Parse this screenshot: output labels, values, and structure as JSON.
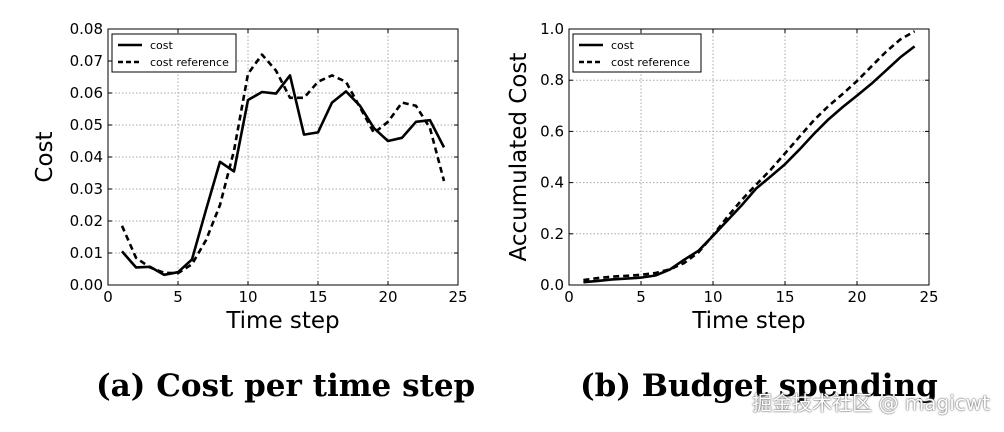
{
  "chart_data": [
    {
      "type": "line",
      "title": "",
      "xlabel": "Time step",
      "ylabel": "Cost",
      "xlim": [
        0,
        25
      ],
      "ylim": [
        0,
        0.08
      ],
      "xticks": [
        0,
        5,
        10,
        15,
        20,
        25
      ],
      "xtick_labels": [
        "0",
        "5",
        "10",
        "15",
        "20",
        "25"
      ],
      "yticks": [
        0,
        0.01,
        0.02,
        0.03,
        0.04,
        0.05,
        0.06,
        0.07,
        0.08
      ],
      "ytick_labels": [
        "0.00",
        "0.01",
        "0.02",
        "0.03",
        "0.04",
        "0.05",
        "0.06",
        "0.07",
        "0.08"
      ],
      "grid": true,
      "legend_position": "top-left",
      "x": [
        1,
        2,
        3,
        4,
        5,
        6,
        7,
        8,
        9,
        10,
        11,
        12,
        13,
        14,
        15,
        16,
        17,
        18,
        19,
        20,
        21,
        22,
        23,
        24
      ],
      "series": [
        {
          "name": "cost",
          "style": "solid",
          "values": [
            0.0105,
            0.0055,
            0.0057,
            0.0032,
            0.004,
            0.008,
            0.0235,
            0.0385,
            0.0355,
            0.0578,
            0.0603,
            0.0598,
            0.0655,
            0.047,
            0.0477,
            0.057,
            0.0605,
            0.056,
            0.049,
            0.045,
            0.046,
            0.051,
            0.0515,
            0.043
          ]
        },
        {
          "name": "cost reference",
          "style": "dashed",
          "values": [
            0.0185,
            0.0085,
            0.0055,
            0.0038,
            0.0037,
            0.0065,
            0.014,
            0.025,
            0.042,
            0.066,
            0.072,
            0.067,
            0.0585,
            0.0585,
            0.0635,
            0.0655,
            0.0635,
            0.0555,
            0.0475,
            0.051,
            0.057,
            0.056,
            0.049,
            0.0325
          ]
        }
      ]
    },
    {
      "type": "line",
      "title": "",
      "xlabel": "Time step",
      "ylabel": "Accumulated Cost",
      "xlim": [
        0,
        25
      ],
      "ylim": [
        0,
        1.0
      ],
      "xticks": [
        0,
        5,
        10,
        15,
        20,
        25
      ],
      "xtick_labels": [
        "0",
        "5",
        "10",
        "15",
        "20",
        "25"
      ],
      "yticks": [
        0,
        0.2,
        0.4,
        0.6,
        0.8,
        1.0
      ],
      "ytick_labels": [
        "0.0",
        "0.2",
        "0.4",
        "0.6",
        "0.8",
        "1.0"
      ],
      "grid": true,
      "legend_position": "top-left",
      "x": [
        1,
        2,
        3,
        4,
        5,
        6,
        7,
        8,
        9,
        10,
        11,
        12,
        13,
        14,
        15,
        16,
        17,
        18,
        19,
        20,
        21,
        22,
        23,
        24
      ],
      "series": [
        {
          "name": "cost",
          "style": "solid",
          "values": [
            0.011,
            0.016,
            0.022,
            0.025,
            0.029,
            0.037,
            0.06,
            0.099,
            0.134,
            0.192,
            0.252,
            0.312,
            0.377,
            0.424,
            0.472,
            0.529,
            0.59,
            0.646,
            0.695,
            0.74,
            0.786,
            0.837,
            0.889,
            0.932
          ]
        },
        {
          "name": "cost reference",
          "style": "dashed",
          "values": [
            0.019,
            0.027,
            0.033,
            0.036,
            0.04,
            0.047,
            0.061,
            0.086,
            0.128,
            0.194,
            0.266,
            0.333,
            0.392,
            0.45,
            0.514,
            0.579,
            0.643,
            0.698,
            0.746,
            0.797,
            0.854,
            0.91,
            0.959,
            0.991
          ]
        }
      ]
    }
  ],
  "captions": {
    "a": "(a) Cost per time step",
    "b": "(b) Budget spending"
  },
  "watermark": "掘金技术社区 @ magicwt"
}
